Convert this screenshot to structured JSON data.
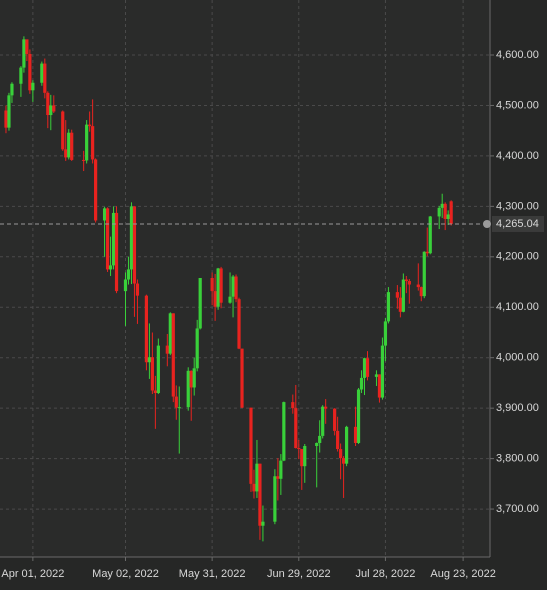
{
  "chart_data": {
    "type": "candlestick",
    "up_color": "#39d13a",
    "down_color": "#e8231f",
    "grid": true,
    "x": [
      "2022-03-23",
      "2022-03-24",
      "2022-03-25",
      "2022-03-28",
      "2022-03-29",
      "2022-03-30",
      "2022-03-31",
      "2022-04-01",
      "2022-04-04",
      "2022-04-05",
      "2022-04-06",
      "2022-04-07",
      "2022-04-08",
      "2022-04-11",
      "2022-04-12",
      "2022-04-13",
      "2022-04-14",
      "2022-04-18",
      "2022-04-19",
      "2022-04-20",
      "2022-04-21",
      "2022-04-22",
      "2022-04-25",
      "2022-04-26",
      "2022-04-27",
      "2022-04-28",
      "2022-04-29",
      "2022-05-02",
      "2022-05-03",
      "2022-05-04",
      "2022-05-05",
      "2022-05-06",
      "2022-05-09",
      "2022-05-10",
      "2022-05-11",
      "2022-05-12",
      "2022-05-13",
      "2022-05-16",
      "2022-05-17",
      "2022-05-18",
      "2022-05-19",
      "2022-05-20",
      "2022-05-23",
      "2022-05-24",
      "2022-05-25",
      "2022-05-26",
      "2022-05-27",
      "2022-05-31",
      "2022-06-01",
      "2022-06-02",
      "2022-06-03",
      "2022-06-06",
      "2022-06-07",
      "2022-06-08",
      "2022-06-09",
      "2022-06-10",
      "2022-06-13",
      "2022-06-14",
      "2022-06-15",
      "2022-06-16",
      "2022-06-17",
      "2022-06-21",
      "2022-06-22",
      "2022-06-23",
      "2022-06-24",
      "2022-06-27",
      "2022-06-28",
      "2022-06-29",
      "2022-06-30",
      "2022-07-01",
      "2022-07-05",
      "2022-07-06",
      "2022-07-07",
      "2022-07-08",
      "2022-07-11",
      "2022-07-12",
      "2022-07-13",
      "2022-07-14",
      "2022-07-15",
      "2022-07-18",
      "2022-07-19",
      "2022-07-20",
      "2022-07-21",
      "2022-07-22",
      "2022-07-25",
      "2022-07-26",
      "2022-07-27",
      "2022-07-28",
      "2022-07-29",
      "2022-08-01",
      "2022-08-02",
      "2022-08-03",
      "2022-08-04",
      "2022-08-05",
      "2022-08-08",
      "2022-08-09",
      "2022-08-10",
      "2022-08-11",
      "2022-08-12",
      "2022-08-15",
      "2022-08-16",
      "2022-08-17",
      "2022-08-18",
      "2022-08-19"
    ],
    "open": [
      4490,
      4456,
      4520,
      4543,
      4575,
      4631,
      4602,
      4530,
      4545,
      4583,
      4525,
      4481,
      4500,
      4488,
      4413,
      4397,
      4446,
      4392,
      4391,
      4462,
      4459,
      4393,
      4272,
      4296,
      4175,
      4183,
      4287,
      4132,
      4155,
      4175,
      4300,
      4147,
      4123,
      3991,
      4001,
      3935,
      3930,
      4024,
      4008,
      4088,
      3923,
      3901,
      3902,
      3974,
      3941,
      3979,
      4058,
      4158,
      4132,
      4101,
      4177,
      4109,
      4121,
      4161,
      4116,
      4018,
      3901,
      3750,
      3735,
      3790,
      3667,
      3675,
      3765,
      3760,
      3796,
      3912,
      3900,
      3821,
      3819,
      3785,
      3825,
      3831,
      3845,
      3903,
      3899,
      3855,
      3819,
      3801,
      3790,
      3863,
      3831,
      3937,
      3960,
      3999,
      3962,
      3967,
      3921,
      4024,
      4072,
      4130,
      4119,
      4091,
      4155,
      4152,
      4145,
      4140,
      4122,
      4210,
      4207,
      4280,
      4297,
      4305,
      4275,
      4310
    ],
    "high": [
      4500,
      4525,
      4546,
      4578,
      4637,
      4627,
      4611,
      4550,
      4587,
      4593,
      4528,
      4521,
      4520,
      4490,
      4471,
      4453,
      4452,
      4410,
      4471,
      4488,
      4512,
      4395,
      4299,
      4298,
      4240,
      4300,
      4300,
      4169,
      4200,
      4308,
      4300,
      4155,
      4125,
      4068,
      4050,
      3964,
      4038,
      4047,
      4090,
      4088,
      3945,
      3943,
      3981,
      3975,
      4000,
      4075,
      4158,
      4169,
      4166,
      4178,
      4180,
      4169,
      4164,
      4165,
      4119,
      4018,
      3901,
      3778,
      3837,
      3790,
      3707,
      3779,
      3801,
      3809,
      3913,
      3927,
      3946,
      3837,
      3819,
      3829,
      3832,
      3876,
      3906,
      3918,
      3900,
      3883,
      3830,
      3805,
      3865,
      3903,
      3940,
      3975,
      4000,
      4013,
      3975,
      3967,
      4040,
      4079,
      4140,
      4144,
      4140,
      4167,
      4162,
      4156,
      4187,
      4141,
      4211,
      4258,
      4281,
      4301,
      4325,
      4308,
      4292,
      4312
    ],
    "low": [
      4445,
      4450,
      4505,
      4517,
      4565,
      4588,
      4523,
      4507,
      4539,
      4514,
      4455,
      4451,
      4485,
      4410,
      4390,
      4393,
      4390,
      4370,
      4385,
      4448,
      4385,
      4268,
      4200,
      4170,
      4162,
      4175,
      4128,
      4063,
      4145,
      4146,
      4081,
      4067,
      3975,
      3958,
      3928,
      3859,
      3928,
      3983,
      4005,
      3912,
      3877,
      3810,
      3895,
      3875,
      3925,
      3973,
      4056,
      4104,
      4073,
      4095,
      4098,
      4107,
      4080,
      4110,
      4017,
      3900,
      3734,
      3721,
      3722,
      3639,
      3636,
      3670,
      3717,
      3728,
      3795,
      3889,
      3820,
      3799,
      3738,
      3752,
      3743,
      3812,
      3840,
      3869,
      3846,
      3814,
      3759,
      3722,
      3785,
      3825,
      3829,
      3930,
      3926,
      3955,
      3944,
      3911,
      3917,
      3993,
      4068,
      4097,
      4080,
      4090,
      4128,
      4107,
      4133,
      4112,
      4118,
      4201,
      4205,
      4255,
      4277,
      4253,
      4263,
      4262
    ],
    "close": [
      4456,
      4520,
      4543,
      4575,
      4631,
      4602,
      4530,
      4545,
      4583,
      4525,
      4481,
      4500,
      4488,
      4413,
      4397,
      4446,
      4392,
      4391,
      4462,
      4459,
      4393,
      4272,
      4296,
      4175,
      4183,
      4287,
      4132,
      4155,
      4175,
      4300,
      4147,
      4123,
      3991,
      4001,
      3935,
      3930,
      4024,
      4008,
      4088,
      3923,
      3901,
      3902,
      3974,
      3941,
      3979,
      4058,
      4158,
      4132,
      4101,
      4177,
      4109,
      4121,
      4161,
      4116,
      4018,
      3901,
      3750,
      3735,
      3790,
      3667,
      3675,
      3765,
      3760,
      3796,
      3912,
      3900,
      3821,
      3819,
      3785,
      3825,
      3831,
      3845,
      3903,
      3899,
      3855,
      3819,
      3801,
      3790,
      3863,
      3831,
      3937,
      3960,
      3999,
      3962,
      3967,
      3921,
      4024,
      4072,
      4130,
      4119,
      4091,
      4155,
      4152,
      4145,
      4140,
      4122,
      4210,
      4207,
      4280,
      4297,
      4305,
      4275,
      4284,
      4265.04
    ],
    "last_price": {
      "value": 4265.04,
      "label": "4,265.04"
    },
    "xlim": [
      "2022-03-21",
      "2022-09-01"
    ],
    "xticks": [
      {
        "value": "2022-04-01",
        "label": "Apr 01, 2022"
      },
      {
        "value": "2022-05-02",
        "label": "May 02, 2022"
      },
      {
        "value": "2022-05-31",
        "label": "May 31, 2022"
      },
      {
        "value": "2022-06-29",
        "label": "Jun 29, 2022"
      },
      {
        "value": "2022-07-28",
        "label": "Jul 28, 2022"
      },
      {
        "value": "2022-08-23",
        "label": "Aug 23, 2022"
      }
    ],
    "ylim": [
      3605,
      4709
    ],
    "yticks": [
      {
        "value": 3700,
        "label": "3,700.00"
      },
      {
        "value": 3800,
        "label": "3,800.00"
      },
      {
        "value": 3900,
        "label": "3,900.00"
      },
      {
        "value": 4000,
        "label": "4,000.00"
      },
      {
        "value": 4100,
        "label": "4,100.00"
      },
      {
        "value": 4200,
        "label": "4,200.00"
      },
      {
        "value": 4300,
        "label": "4,300.00"
      },
      {
        "value": 4400,
        "label": "4,400.00"
      },
      {
        "value": 4500,
        "label": "4,500.00"
      },
      {
        "value": 4600,
        "label": "4,600.00"
      }
    ]
  }
}
